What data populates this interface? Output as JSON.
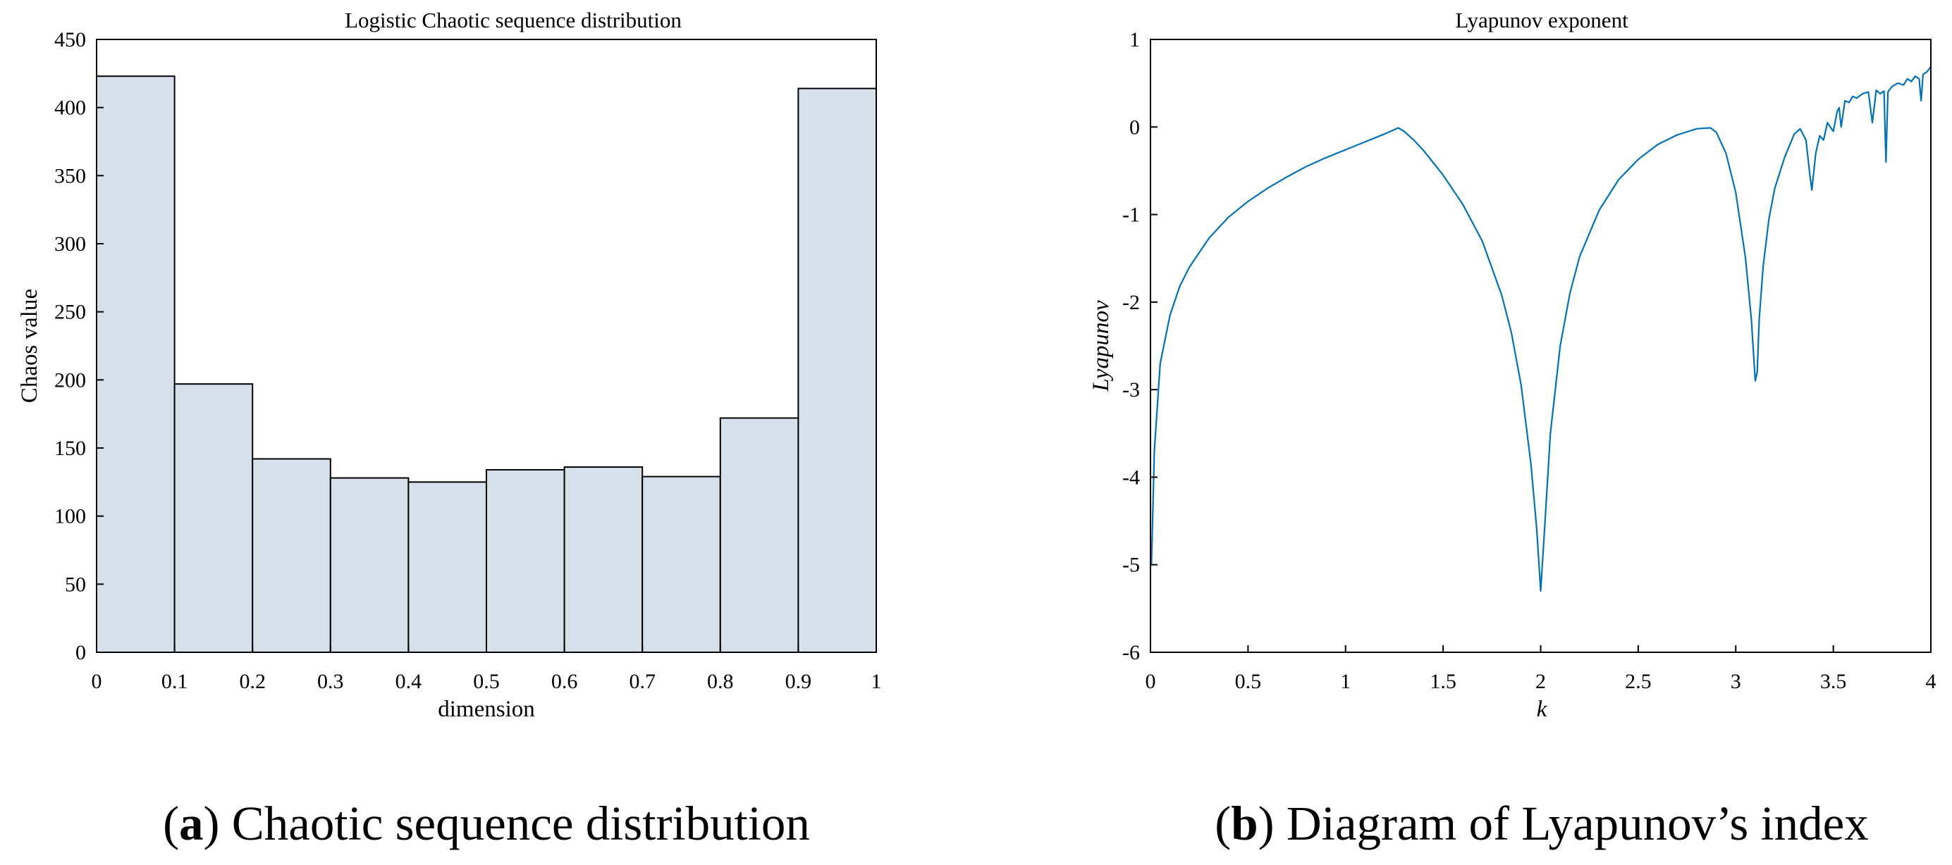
{
  "chart_data": [
    {
      "id": "a",
      "type": "bar",
      "title": "Logistic Chaotic sequence distribution",
      "xlabel": "dimension",
      "ylabel": "Chaos value",
      "categories": [
        "0-0.1",
        "0.1-0.2",
        "0.2-0.3",
        "0.3-0.4",
        "0.4-0.5",
        "0.5-0.6",
        "0.6-0.7",
        "0.7-0.8",
        "0.8-0.9",
        "0.9-1"
      ],
      "bin_edges": [
        0,
        0.1,
        0.2,
        0.3,
        0.4,
        0.5,
        0.6,
        0.7,
        0.8,
        0.9,
        1
      ],
      "values": [
        423,
        197,
        142,
        128,
        125,
        134,
        136,
        129,
        172,
        414
      ],
      "xlim": [
        0,
        1
      ],
      "ylim": [
        0,
        450
      ],
      "xticks": [
        "0",
        "0.1",
        "0.2",
        "0.3",
        "0.4",
        "0.5",
        "0.6",
        "0.7",
        "0.8",
        "0.9",
        "1"
      ],
      "yticks": [
        "0",
        "50",
        "100",
        "150",
        "200",
        "250",
        "300",
        "350",
        "400",
        "450"
      ],
      "bar_color": "#d6e0ea",
      "edge_color": "#000000",
      "grid": false,
      "caption": {
        "label": "a",
        "text": "Chaotic sequence distribution"
      }
    },
    {
      "id": "b",
      "type": "line",
      "title": "Lyapunov exponent",
      "xlabel": "k",
      "ylabel": "Lyapunov",
      "xlim": [
        0,
        4
      ],
      "ylim": [
        -6,
        1
      ],
      "xticks": [
        "0",
        "0.5",
        "1",
        "1.5",
        "2",
        "2.5",
        "3",
        "3.5",
        "4"
      ],
      "yticks": [
        "-6",
        "-5",
        "-4",
        "-3",
        "-2",
        "-1",
        "0",
        "1"
      ],
      "line_color": "#0072bd",
      "grid": false,
      "series": [
        {
          "name": "Lyapunov exponent",
          "x": [
            0.005,
            0.02,
            0.05,
            0.1,
            0.15,
            0.2,
            0.3,
            0.4,
            0.5,
            0.6,
            0.7,
            0.8,
            0.9,
            1.0,
            1.1,
            1.2,
            1.27,
            1.3,
            1.35,
            1.4,
            1.5,
            1.6,
            1.7,
            1.8,
            1.85,
            1.9,
            1.95,
            1.98,
            2.0,
            2.02,
            2.05,
            2.1,
            2.15,
            2.2,
            2.3,
            2.4,
            2.5,
            2.6,
            2.7,
            2.8,
            2.87,
            2.9,
            2.95,
            3.0,
            3.05,
            3.08,
            3.1,
            3.11,
            3.12,
            3.14,
            3.17,
            3.2,
            3.25,
            3.3,
            3.33,
            3.36,
            3.38,
            3.39,
            3.41,
            3.43,
            3.45,
            3.47,
            3.5,
            3.52,
            3.53,
            3.54,
            3.56,
            3.58,
            3.6,
            3.62,
            3.65,
            3.68,
            3.7,
            3.72,
            3.74,
            3.76,
            3.77,
            3.78,
            3.8,
            3.83,
            3.86,
            3.88,
            3.9,
            3.92,
            3.94,
            3.95,
            3.96,
            3.98,
            4.0
          ],
          "y": [
            -5.0,
            -3.7,
            -2.7,
            -2.15,
            -1.82,
            -1.6,
            -1.27,
            -1.03,
            -0.85,
            -0.7,
            -0.57,
            -0.45,
            -0.35,
            -0.26,
            -0.17,
            -0.08,
            -0.01,
            -0.05,
            -0.15,
            -0.27,
            -0.55,
            -0.88,
            -1.3,
            -1.92,
            -2.35,
            -2.95,
            -3.85,
            -4.6,
            -5.3,
            -4.6,
            -3.5,
            -2.5,
            -1.9,
            -1.48,
            -0.95,
            -0.6,
            -0.37,
            -0.2,
            -0.09,
            -0.02,
            -0.01,
            -0.06,
            -0.3,
            -0.75,
            -1.5,
            -2.2,
            -2.9,
            -2.8,
            -2.2,
            -1.6,
            -1.05,
            -0.7,
            -0.35,
            -0.08,
            -0.02,
            -0.15,
            -0.55,
            -0.72,
            -0.3,
            -0.1,
            -0.15,
            0.05,
            -0.05,
            0.18,
            0.22,
            0.0,
            0.3,
            0.28,
            0.35,
            0.33,
            0.38,
            0.4,
            0.05,
            0.42,
            0.38,
            0.41,
            -0.4,
            0.4,
            0.46,
            0.5,
            0.48,
            0.55,
            0.52,
            0.58,
            0.55,
            0.3,
            0.6,
            0.63,
            0.69
          ]
        }
      ],
      "caption": {
        "label": "b",
        "text": "Diagram of Lyapunov’s index"
      }
    }
  ]
}
